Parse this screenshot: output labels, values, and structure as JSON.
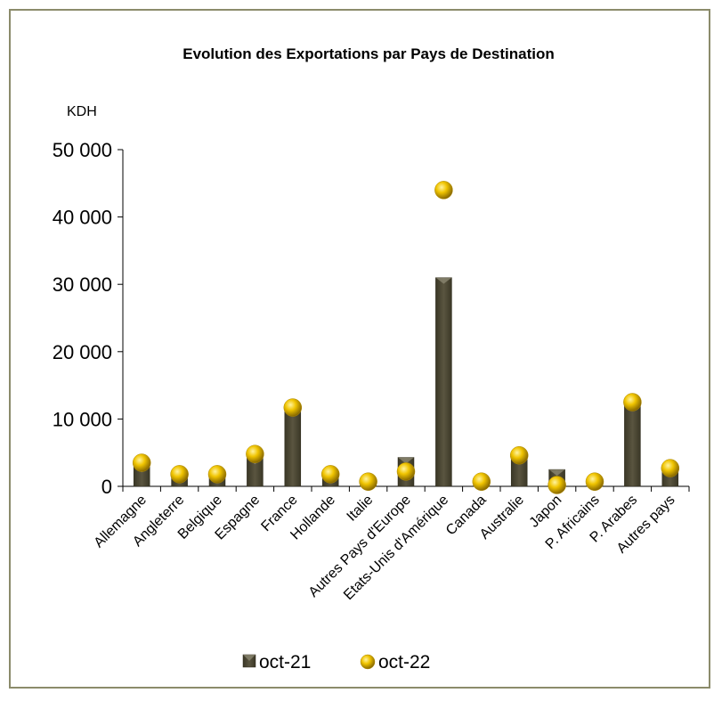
{
  "chart_data": {
    "type": "bar",
    "title": "Evolution des Exportations par Pays de Destination",
    "unit_label": "KDH",
    "xlabel": "",
    "ylabel": "",
    "ylim": [
      0,
      50000
    ],
    "yticks": [
      0,
      10000,
      20000,
      30000,
      40000,
      50000
    ],
    "ytick_labels": [
      "0",
      "10 000",
      "20 000",
      "30 000",
      "40 000",
      "50 000"
    ],
    "categories": [
      "Allemagne",
      "Angleterre",
      "Belgique",
      "Espagne",
      "France",
      "Hollande",
      "Italie",
      "Autres Pays d'Europe",
      "Etats-Unis d'Amérique",
      "Canada",
      "Australie",
      "Japon",
      "P. Africains",
      "P. Arabes",
      "Autres pays"
    ],
    "series": [
      {
        "name": "oct-21",
        "render": "bar",
        "color": "#4a4632",
        "values": [
          3000,
          1700,
          1700,
          4200,
          11500,
          1700,
          600,
          4300,
          31000,
          600,
          4200,
          2500,
          600,
          12500,
          2300
        ]
      },
      {
        "name": "oct-22",
        "render": "marker",
        "color": "#e8b800",
        "values": [
          3500,
          1800,
          1800,
          4800,
          11700,
          1800,
          700,
          2200,
          44000,
          700,
          4600,
          200,
          700,
          12500,
          2700
        ]
      }
    ],
    "grid": false,
    "legend": "bottom"
  }
}
